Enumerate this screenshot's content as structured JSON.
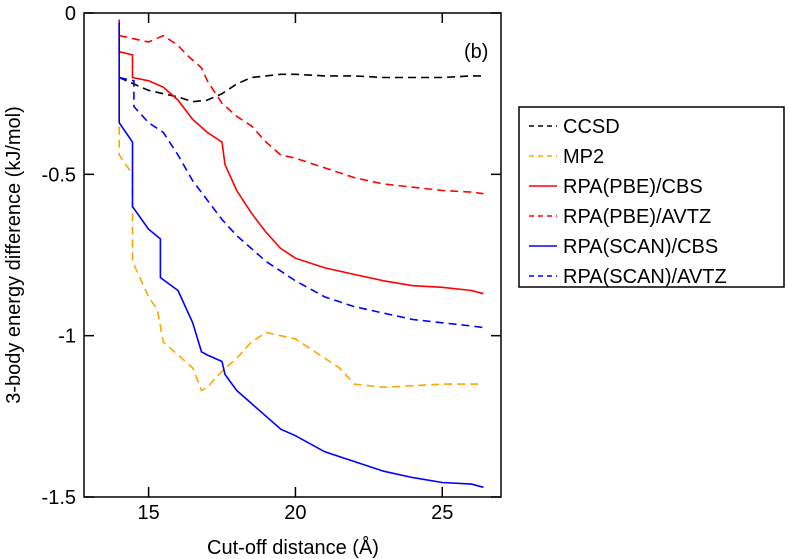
{
  "chart_data": {
    "type": "line",
    "title": "",
    "panel_label": "(b)",
    "xlabel": "Cut-off distance (Å)",
    "ylabel": "3-body energy difference (kJ/mol)",
    "xlim": [
      12.8,
      27.0
    ],
    "ylim": [
      -1.5,
      0.0
    ],
    "xticks": [
      {
        "value": 15,
        "label": "15"
      },
      {
        "value": 20,
        "label": "20"
      },
      {
        "value": 25,
        "label": "25"
      }
    ],
    "yticks": [
      {
        "value": 0,
        "label": "0"
      },
      {
        "value": -0.5,
        "label": "-0.5"
      },
      {
        "value": -1,
        "label": "-1"
      },
      {
        "value": -1.5,
        "label": "-1.5"
      }
    ],
    "legend_position": "outside-right",
    "series": [
      {
        "name": "CCSD",
        "color": "#000000",
        "dash": "dashed",
        "x": [
          14.0,
          14.5,
          15.0,
          15.5,
          16.0,
          16.5,
          17.0,
          17.5,
          18.0,
          18.5,
          19.0,
          19.5,
          20.0,
          21.0,
          22.0,
          23.0,
          24.0,
          25.0,
          26.0,
          26.4
        ],
        "y": [
          -0.2,
          -0.22,
          -0.24,
          -0.25,
          -0.26,
          -0.275,
          -0.27,
          -0.25,
          -0.22,
          -0.2,
          -0.195,
          -0.19,
          -0.19,
          -0.195,
          -0.195,
          -0.2,
          -0.2,
          -0.2,
          -0.195,
          -0.195
        ]
      },
      {
        "name": "MP2",
        "color": "#ffa500",
        "dash": "dashed",
        "x": [
          14.0,
          14.0,
          14.45,
          14.45,
          15.0,
          15.3,
          15.5,
          16.0,
          16.5,
          16.8,
          17.0,
          17.5,
          18.0,
          18.5,
          19.0,
          19.5,
          20.0,
          20.5,
          21.0,
          21.5,
          22.0,
          23.0,
          24.0,
          25.0,
          26.0,
          26.4
        ],
        "y": [
          -0.03,
          -0.44,
          -0.5,
          -0.77,
          -0.88,
          -0.92,
          -1.02,
          -1.06,
          -1.1,
          -1.17,
          -1.16,
          -1.11,
          -1.07,
          -1.02,
          -0.99,
          -1.0,
          -1.01,
          -1.04,
          -1.07,
          -1.1,
          -1.15,
          -1.16,
          -1.155,
          -1.15,
          -1.15,
          -1.15
        ]
      },
      {
        "name": "RPA(PBE)/CBS",
        "color": "#ff0000",
        "dash": "solid",
        "x": [
          14.0,
          14.0,
          14.45,
          14.45,
          15.0,
          15.5,
          16.0,
          16.5,
          17.0,
          17.5,
          17.6,
          18.0,
          18.5,
          19.0,
          19.5,
          20.0,
          21.0,
          22.0,
          23.0,
          24.0,
          25.0,
          26.0,
          26.4
        ],
        "y": [
          -0.02,
          -0.12,
          -0.13,
          -0.2,
          -0.21,
          -0.23,
          -0.27,
          -0.33,
          -0.37,
          -0.4,
          -0.47,
          -0.55,
          -0.62,
          -0.68,
          -0.73,
          -0.76,
          -0.79,
          -0.81,
          -0.83,
          -0.845,
          -0.85,
          -0.86,
          -0.87
        ]
      },
      {
        "name": "RPA(PBE)/AVTZ",
        "color": "#ff0000",
        "dash": "dashed",
        "x": [
          14.0,
          14.5,
          15.0,
          15.5,
          16.0,
          16.3,
          16.8,
          17.0,
          17.5,
          18.0,
          18.5,
          19.0,
          19.5,
          20.0,
          21.0,
          22.0,
          23.0,
          24.0,
          25.0,
          26.0,
          26.4
        ],
        "y": [
          -0.07,
          -0.08,
          -0.09,
          -0.07,
          -0.1,
          -0.13,
          -0.17,
          -0.21,
          -0.28,
          -0.32,
          -0.35,
          -0.4,
          -0.44,
          -0.45,
          -0.48,
          -0.51,
          -0.53,
          -0.54,
          -0.55,
          -0.555,
          -0.56
        ]
      },
      {
        "name": "RPA(SCAN)/CBS",
        "color": "#0000ff",
        "dash": "solid",
        "x": [
          14.0,
          14.0,
          14.45,
          14.45,
          15.0,
          15.4,
          15.4,
          16.0,
          16.5,
          16.8,
          17.0,
          17.5,
          17.6,
          18.0,
          18.5,
          19.0,
          19.5,
          20.0,
          21.0,
          22.0,
          23.0,
          24.0,
          25.0,
          26.0,
          26.4
        ],
        "y": [
          -0.03,
          -0.34,
          -0.4,
          -0.6,
          -0.67,
          -0.7,
          -0.82,
          -0.86,
          -0.96,
          -1.05,
          -1.06,
          -1.08,
          -1.12,
          -1.17,
          -1.21,
          -1.25,
          -1.29,
          -1.31,
          -1.36,
          -1.39,
          -1.42,
          -1.44,
          -1.455,
          -1.46,
          -1.47
        ]
      },
      {
        "name": "RPA(SCAN)/AVTZ",
        "color": "#0000ff",
        "dash": "dashed",
        "x": [
          14.0,
          14.5,
          14.5,
          15.0,
          15.5,
          16.0,
          16.5,
          17.0,
          17.5,
          18.0,
          18.5,
          19.0,
          19.5,
          20.0,
          21.0,
          22.0,
          23.0,
          24.0,
          25.0,
          26.0,
          26.4
        ],
        "y": [
          -0.2,
          -0.21,
          -0.29,
          -0.34,
          -0.37,
          -0.44,
          -0.52,
          -0.58,
          -0.64,
          -0.69,
          -0.73,
          -0.77,
          -0.8,
          -0.83,
          -0.88,
          -0.91,
          -0.93,
          -0.95,
          -0.96,
          -0.97,
          -0.975
        ]
      }
    ]
  }
}
